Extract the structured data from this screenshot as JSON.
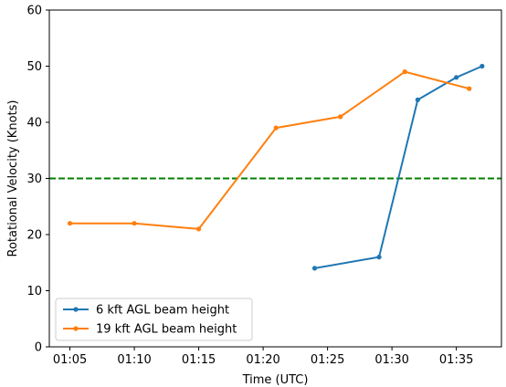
{
  "chart_data": {
    "type": "line",
    "xlabel": "Time (UTC)",
    "ylabel": "Rotational Velocity (Knots)",
    "xlim": [
      "01:03:24",
      "01:38:30"
    ],
    "ylim": [
      0,
      60
    ],
    "xticks": [
      "01:05",
      "01:10",
      "01:15",
      "01:20",
      "01:25",
      "01:30",
      "01:35"
    ],
    "yticks": [
      0,
      10,
      20,
      30,
      40,
      50,
      60
    ],
    "grid": false,
    "legend_position": "lower-left",
    "threshold": {
      "y": 30,
      "color": "#008000",
      "style": "dashed"
    },
    "series": [
      {
        "name": "6 kft AGL beam height",
        "color": "#1f77b4",
        "x": [
          "01:24",
          "01:29",
          "01:32",
          "01:35",
          "01:37"
        ],
        "y": [
          14,
          16,
          44,
          48,
          50
        ]
      },
      {
        "name": "19 kft AGL beam height",
        "color": "#ff7f0e",
        "x": [
          "01:05",
          "01:10",
          "01:15",
          "01:21",
          "01:26",
          "01:31",
          "01:36"
        ],
        "y": [
          22,
          22,
          21,
          39,
          41,
          49,
          46
        ]
      }
    ]
  }
}
